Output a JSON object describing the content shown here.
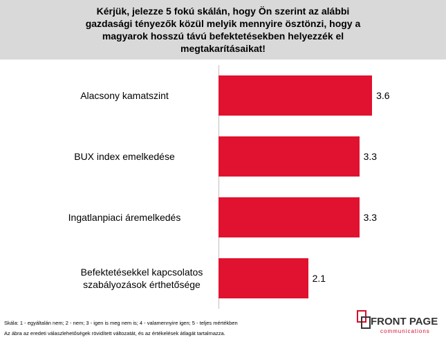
{
  "chart_data": {
    "type": "bar",
    "orientation": "horizontal",
    "title": "Kérjük, jelezze 5 fokú skálán, hogy Ön szerint az alábbi gazdasági tényezők közül melyik mennyire ösztönzi, hogy a magyarok hosszú távú befektetésekben helyezzék el megtakarításaikat!",
    "categories": [
      "Alacsony kamatszint",
      "BUX index emelkedése",
      "Ingatlanpiaci áremelkedés",
      "Befektetésekkel kapcsolatos szabályozások érthetősége"
    ],
    "values": [
      3.6,
      3.3,
      3.3,
      2.1
    ],
    "color": "#e0122f",
    "notes": [
      "Skála: 1 - egyáltalán nem; 2 - nem; 3 - igen is meg nem is; 4 - valamennyire igen; 5 - teljes mértékben",
      "Az ábra az eredeti válaszlehetőségek rövidített változatát, és az értékelések átlagát tartalmazza."
    ]
  },
  "logo": {
    "name": "FRONT PAGE",
    "tagline": "communications"
  }
}
